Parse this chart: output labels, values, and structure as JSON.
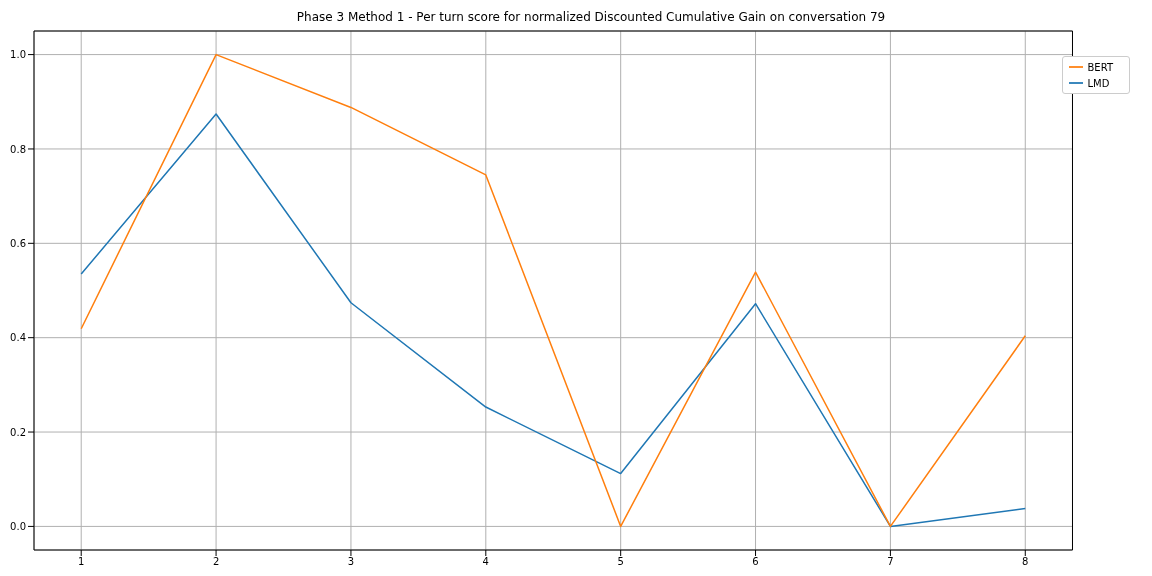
{
  "chart_data": {
    "type": "line",
    "title": "Phase 3 Method 1 - Per turn score for normalized Discounted Cumulative Gain on conversation 79",
    "x": [
      1,
      2,
      3,
      4,
      5,
      6,
      7,
      8
    ],
    "series": [
      {
        "name": "LMD",
        "color": "#1f77b4",
        "values": [
          0.535,
          0.874,
          0.474,
          0.253,
          0.112,
          0.472,
          0.0,
          0.038
        ]
      },
      {
        "name": "BERT",
        "color": "#ff7f0e",
        "values": [
          0.419,
          1.0,
          0.888,
          0.745,
          0.0,
          0.539,
          0.0,
          0.404
        ]
      }
    ],
    "xlim": [
      0.65,
      8.35
    ],
    "xticks": [
      1,
      2,
      3,
      4,
      5,
      6,
      7,
      8
    ],
    "ylim": [
      -0.05,
      1.05
    ],
    "yticks": [
      {
        "value": 0,
        "label": "0.0"
      },
      {
        "value": 0.2,
        "label": "0.2"
      },
      {
        "value": 0.4,
        "label": "0.4"
      },
      {
        "value": 0.6,
        "label": "0.6"
      },
      {
        "value": 0.8,
        "label": "0.8"
      },
      {
        "value": 1,
        "label": "1.0"
      }
    ],
    "grid": true,
    "legend": "top right",
    "marker": "none",
    "line_style": "solid"
  }
}
